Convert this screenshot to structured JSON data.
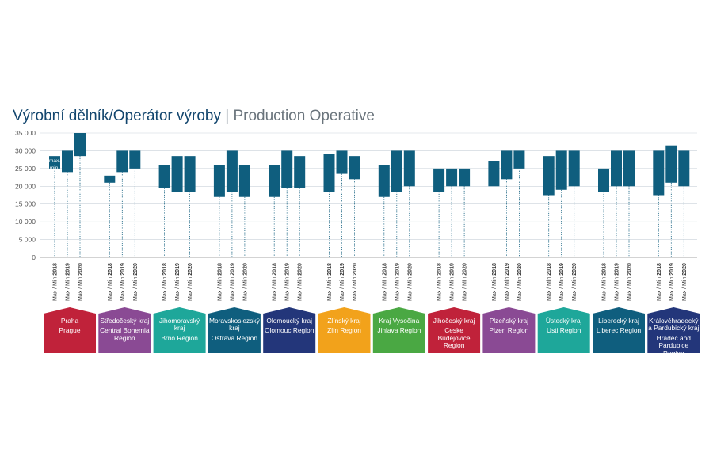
{
  "title": {
    "cz": "Výrobní dělník/Operátor výroby",
    "sep": "|",
    "en": "Production Operative"
  },
  "chart_data": {
    "type": "range-bar",
    "ylim": [
      0,
      35000
    ],
    "yticks": [
      0,
      5000,
      10000,
      15000,
      20000,
      25000,
      30000,
      35000
    ],
    "ytick_labels": [
      "0",
      "5 000",
      "10 000",
      "15 000",
      "20 000",
      "25 000",
      "30 000",
      "35 000"
    ],
    "x_label_prefix": "Max / Min",
    "years": [
      "2018",
      "2019",
      "2020"
    ],
    "legend": {
      "max": "max.",
      "min": "min."
    },
    "grid": true,
    "regions": [
      {
        "name_cz": "Praha",
        "name_en": "Prague",
        "color": "#c0223a",
        "ranges": [
          [
            25000,
            28500
          ],
          [
            24000,
            30000
          ],
          [
            28500,
            35000
          ]
        ]
      },
      {
        "name_cz": "Středočeský kraj",
        "name_en": "Central Bohemia Region",
        "color": "#8a4a94",
        "ranges": [
          [
            21000,
            23000
          ],
          [
            24000,
            30000
          ],
          [
            25000,
            30000
          ]
        ]
      },
      {
        "name_cz": "Jihomoravský kraj",
        "name_en": "Brno Region",
        "color": "#1ea79a",
        "ranges": [
          [
            19500,
            26000
          ],
          [
            18500,
            28500
          ],
          [
            18500,
            28500
          ]
        ]
      },
      {
        "name_cz": "Moravskoslezský kraj",
        "name_en": "Ostrava Region",
        "color": "#0f5e7e",
        "ranges": [
          [
            17000,
            26000
          ],
          [
            18500,
            30000
          ],
          [
            17000,
            26000
          ]
        ]
      },
      {
        "name_cz": "Olomoucký kraj",
        "name_en": "Olomouc Region",
        "color": "#23367a",
        "ranges": [
          [
            17000,
            26000
          ],
          [
            19500,
            30000
          ],
          [
            19500,
            28500
          ]
        ]
      },
      {
        "name_cz": "Zlínský kraj",
        "name_en": "Zlín Region",
        "color": "#f2a21b",
        "ranges": [
          [
            18500,
            29000
          ],
          [
            23500,
            30000
          ],
          [
            22000,
            28500
          ]
        ]
      },
      {
        "name_cz": "Kraj Vysočina",
        "name_en": "Jihlava Region",
        "color": "#4aa843",
        "ranges": [
          [
            17000,
            26000
          ],
          [
            18500,
            30000
          ],
          [
            20000,
            30000
          ]
        ]
      },
      {
        "name_cz": "Jihočeský kraj",
        "name_en": "Ceske Budejovice Region",
        "color": "#c0223a",
        "ranges": [
          [
            18500,
            25000
          ],
          [
            20000,
            25000
          ],
          [
            20000,
            25000
          ]
        ]
      },
      {
        "name_cz": "Plzeňský kraj",
        "name_en": "Plzen Region",
        "color": "#8a4a94",
        "ranges": [
          [
            20000,
            27000
          ],
          [
            22000,
            30000
          ],
          [
            25000,
            30000
          ]
        ]
      },
      {
        "name_cz": "Ústecký kraj",
        "name_en": "Usti Region",
        "color": "#1ea79a",
        "ranges": [
          [
            17500,
            28500
          ],
          [
            19000,
            30000
          ],
          [
            20000,
            30000
          ]
        ]
      },
      {
        "name_cz": "Liberecký kraj",
        "name_en": "Liberec Region",
        "color": "#0f5e7e",
        "ranges": [
          [
            18500,
            25000
          ],
          [
            20000,
            30000
          ],
          [
            20000,
            30000
          ]
        ]
      },
      {
        "name_cz": "Královéhradecký a Pardubický kraj",
        "name_en": "Hradec and Pardubice Region",
        "color": "#23367a",
        "ranges": [
          [
            17500,
            30000
          ],
          [
            21000,
            31500
          ],
          [
            20000,
            30000
          ]
        ]
      }
    ]
  }
}
